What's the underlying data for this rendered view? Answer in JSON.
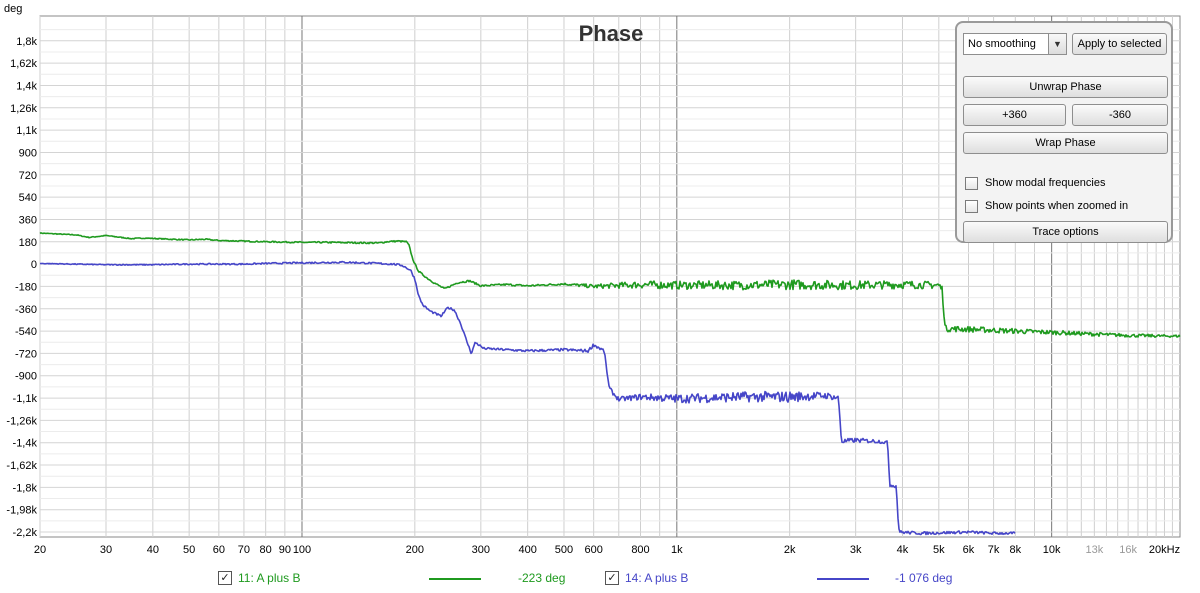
{
  "chart_data": {
    "type": "line",
    "title": "Phase",
    "ylabel": "deg",
    "xlabel": "",
    "x_scale": "log",
    "xlim": [
      20,
      22000
    ],
    "ylim": [
      -2200,
      2000
    ],
    "x_ticks": [
      {
        "v": 20,
        "t": "20",
        "major": true
      },
      {
        "v": 30,
        "t": "30",
        "major": true
      },
      {
        "v": 40,
        "t": "40",
        "major": true
      },
      {
        "v": 50,
        "t": "50",
        "major": true
      },
      {
        "v": 60,
        "t": "60",
        "major": true
      },
      {
        "v": 70,
        "t": "70",
        "major": true
      },
      {
        "v": 80,
        "t": "80",
        "major": true
      },
      {
        "v": 90,
        "t": "90",
        "major": true
      },
      {
        "v": 100,
        "t": "100",
        "major": true
      },
      {
        "v": 200,
        "t": "200",
        "major": true
      },
      {
        "v": 300,
        "t": "300",
        "major": true
      },
      {
        "v": 400,
        "t": "400",
        "major": true
      },
      {
        "v": 500,
        "t": "500",
        "major": true
      },
      {
        "v": 600,
        "t": "600",
        "major": true
      },
      {
        "v": 800,
        "t": "800",
        "major": true
      },
      {
        "v": 1000,
        "t": "1k",
        "major": true
      },
      {
        "v": 2000,
        "t": "2k",
        "major": true
      },
      {
        "v": 3000,
        "t": "3k",
        "major": true
      },
      {
        "v": 4000,
        "t": "4k",
        "major": true
      },
      {
        "v": 5000,
        "t": "5k",
        "major": true
      },
      {
        "v": 6000,
        "t": "6k",
        "major": true
      },
      {
        "v": 7000,
        "t": "7k",
        "major": true
      },
      {
        "v": 8000,
        "t": "8k",
        "major": true
      },
      {
        "v": 10000,
        "t": "10k",
        "major": true
      },
      {
        "v": 13000,
        "t": "13k",
        "major": false
      },
      {
        "v": 16000,
        "t": "16k",
        "major": false
      },
      {
        "v": 20000,
        "t": "20kHz",
        "major": true
      }
    ],
    "y_ticks": [
      {
        "v": 1800,
        "t": "1,8k"
      },
      {
        "v": 1620,
        "t": "1,62k"
      },
      {
        "v": 1440,
        "t": "1,4k"
      },
      {
        "v": 1260,
        "t": "1,26k"
      },
      {
        "v": 1080,
        "t": "1,1k"
      },
      {
        "v": 900,
        "t": "900"
      },
      {
        "v": 720,
        "t": "720"
      },
      {
        "v": 540,
        "t": "540"
      },
      {
        "v": 360,
        "t": "360"
      },
      {
        "v": 180,
        "t": "180"
      },
      {
        "v": 0,
        "t": "0"
      },
      {
        "v": -180,
        "t": "-180"
      },
      {
        "v": -360,
        "t": "-360"
      },
      {
        "v": -540,
        "t": "-540"
      },
      {
        "v": -720,
        "t": "-720"
      },
      {
        "v": -900,
        "t": "-900"
      },
      {
        "v": -1080,
        "t": "-1,1k"
      },
      {
        "v": -1260,
        "t": "-1,26k"
      },
      {
        "v": -1440,
        "t": "-1,4k"
      },
      {
        "v": -1620,
        "t": "-1,62k"
      },
      {
        "v": -1800,
        "t": "-1,8k"
      },
      {
        "v": -1980,
        "t": "-1,98k"
      },
      {
        "v": -2160,
        "t": "-2,2k"
      }
    ],
    "series": [
      {
        "name": "11: A plus B",
        "color": "#1f9a1f",
        "points": [
          [
            20,
            250
          ],
          [
            25,
            235
          ],
          [
            27,
            215
          ],
          [
            30,
            230
          ],
          [
            33,
            215
          ],
          [
            35,
            205
          ],
          [
            38,
            210
          ],
          [
            45,
            200
          ],
          [
            50,
            195
          ],
          [
            55,
            200
          ],
          [
            60,
            190
          ],
          [
            70,
            185
          ],
          [
            80,
            180
          ],
          [
            90,
            178
          ],
          [
            100,
            175
          ],
          [
            120,
            175
          ],
          [
            140,
            172
          ],
          [
            160,
            170
          ],
          [
            170,
            182
          ],
          [
            180,
            185
          ],
          [
            190,
            180
          ],
          [
            193,
            150
          ],
          [
            197,
            50
          ],
          [
            200,
            0
          ],
          [
            205,
            -60
          ],
          [
            215,
            -110
          ],
          [
            225,
            -150
          ],
          [
            240,
            -200
          ],
          [
            260,
            -150
          ],
          [
            280,
            -135
          ],
          [
            300,
            -175
          ],
          [
            350,
            -165
          ],
          [
            400,
            -175
          ],
          [
            500,
            -160
          ],
          [
            600,
            -180
          ],
          [
            800,
            -165
          ],
          [
            1000,
            -170
          ],
          [
            1500,
            -170
          ],
          [
            2000,
            -165
          ],
          [
            3000,
            -170
          ],
          [
            4000,
            -165
          ],
          [
            5000,
            -170
          ],
          [
            5100,
            -200
          ],
          [
            5200,
            -520
          ],
          [
            6000,
            -525
          ],
          [
            8000,
            -540
          ],
          [
            10000,
            -550
          ],
          [
            13000,
            -565
          ],
          [
            16000,
            -575
          ],
          [
            20000,
            -580
          ],
          [
            22000,
            -580
          ]
        ],
        "noise": [
          [
            20,
            3
          ],
          [
            500,
            8
          ],
          [
            800,
            30
          ],
          [
            2000,
            40
          ],
          [
            5000,
            30
          ],
          [
            5200,
            25
          ],
          [
            10000,
            18
          ],
          [
            22000,
            10
          ]
        ]
      },
      {
        "name": "14: A plus B",
        "color": "#4646c8",
        "points": [
          [
            20,
            5
          ],
          [
            30,
            -5
          ],
          [
            40,
            -5
          ],
          [
            50,
            0
          ],
          [
            60,
            0
          ],
          [
            70,
            0
          ],
          [
            80,
            5
          ],
          [
            90,
            8
          ],
          [
            100,
            10
          ],
          [
            130,
            15
          ],
          [
            160,
            5
          ],
          [
            175,
            0
          ],
          [
            185,
            -10
          ],
          [
            195,
            -50
          ],
          [
            200,
            -120
          ],
          [
            205,
            -260
          ],
          [
            210,
            -330
          ],
          [
            220,
            -380
          ],
          [
            235,
            -420
          ],
          [
            245,
            -350
          ],
          [
            255,
            -370
          ],
          [
            265,
            -480
          ],
          [
            275,
            -620
          ],
          [
            283,
            -720
          ],
          [
            290,
            -630
          ],
          [
            305,
            -680
          ],
          [
            350,
            -690
          ],
          [
            400,
            -700
          ],
          [
            500,
            -690
          ],
          [
            580,
            -700
          ],
          [
            600,
            -650
          ],
          [
            640,
            -700
          ],
          [
            660,
            -1000
          ],
          [
            680,
            -1050
          ],
          [
            700,
            -1090
          ],
          [
            800,
            -1070
          ],
          [
            1000,
            -1085
          ],
          [
            1500,
            -1070
          ],
          [
            2000,
            -1070
          ],
          [
            2500,
            -1060
          ],
          [
            2700,
            -1080
          ],
          [
            2750,
            -1430
          ],
          [
            3000,
            -1420
          ],
          [
            3500,
            -1430
          ],
          [
            3650,
            -1440
          ],
          [
            3700,
            -1780
          ],
          [
            3850,
            -1790
          ],
          [
            3900,
            -2100
          ],
          [
            3930,
            -2160
          ],
          [
            4500,
            -2170
          ],
          [
            6000,
            -2160
          ],
          [
            7000,
            -2170
          ],
          [
            8000,
            -2170
          ]
        ],
        "noise": [
          [
            20,
            3
          ],
          [
            500,
            10
          ],
          [
            650,
            15
          ],
          [
            1000,
            35
          ],
          [
            2000,
            45
          ],
          [
            2750,
            20
          ],
          [
            4000,
            12
          ],
          [
            8000,
            10
          ]
        ]
      }
    ]
  },
  "legend": {
    "items": [
      {
        "label": "11: A plus B",
        "value": "-223 deg",
        "checked": true
      },
      {
        "label": "14: A plus B",
        "value": "-1 076 deg",
        "checked": true
      }
    ]
  },
  "controls": {
    "smoothing": "No  smoothing",
    "apply_label": "Apply to selected",
    "unwrap_label": "Unwrap Phase",
    "plus360_label": "+360",
    "minus360_label": "-360",
    "wrap_label": "Wrap Phase",
    "modal_label": "Show modal frequencies",
    "points_label": "Show points when zoomed in",
    "trace_options_label": "Trace options"
  }
}
